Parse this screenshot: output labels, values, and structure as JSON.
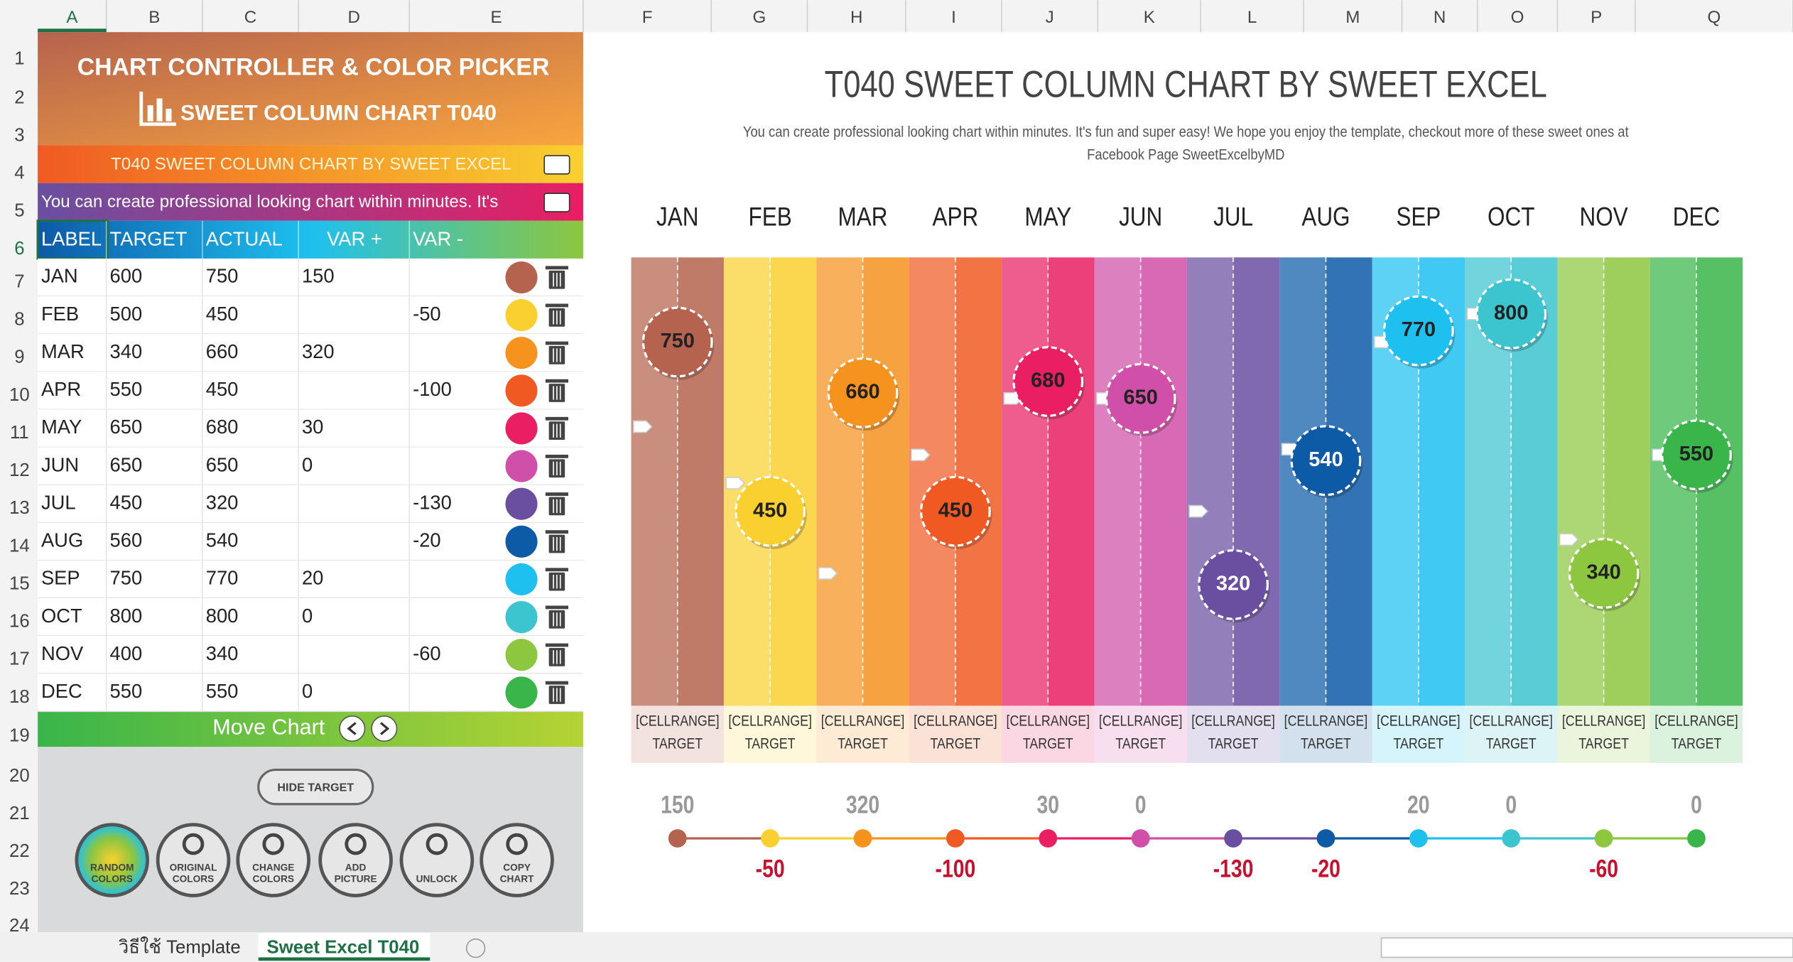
{
  "columns": [
    "A",
    "B",
    "C",
    "D",
    "E",
    "F",
    "G",
    "H",
    "I",
    "J",
    "K",
    "L",
    "M",
    "N",
    "O",
    "P",
    "Q"
  ],
  "row_numbers": [
    1,
    2,
    3,
    4,
    5,
    6,
    7,
    8,
    9,
    10,
    11,
    12,
    13,
    14,
    15,
    16,
    17,
    18,
    19,
    20,
    21,
    22,
    23,
    24
  ],
  "panel": {
    "title": "CHART CONTROLLER & COLOR PICKER",
    "subtitle": "SWEET COLUMN CHART T040",
    "title_cell": "T040 SWEET COLUMN CHART BY SWEET EXCEL",
    "subtitle_cell": "You can create professional looking chart within minutes. It's",
    "move_chart": "Move Chart",
    "hide_target": "HIDE TARGET",
    "buttons": [
      [
        "RANDOM",
        "COLORS"
      ],
      [
        "ORIGINAL",
        "COLORS"
      ],
      [
        "CHANGE",
        "COLORS"
      ],
      [
        "ADD",
        "PICTURE"
      ],
      [
        "UNLOCK"
      ],
      [
        "COPY",
        "CHART"
      ]
    ]
  },
  "table": {
    "headers": [
      "LABEL",
      "TARGET",
      "ACTUAL",
      "VAR +",
      "VAR -"
    ],
    "rows": [
      [
        "JAN",
        600,
        750,
        150,
        null
      ],
      [
        "FEB",
        500,
        450,
        null,
        -50
      ],
      [
        "MAR",
        340,
        660,
        320,
        null
      ],
      [
        "APR",
        550,
        450,
        null,
        -100
      ],
      [
        "MAY",
        650,
        680,
        30,
        null
      ],
      [
        "JUN",
        650,
        650,
        0,
        null
      ],
      [
        "JUL",
        450,
        320,
        null,
        -130
      ],
      [
        "AUG",
        560,
        540,
        null,
        -20
      ],
      [
        "SEP",
        750,
        770,
        20,
        null
      ],
      [
        "OCT",
        800,
        800,
        0,
        null
      ],
      [
        "NOV",
        400,
        340,
        null,
        -60
      ],
      [
        "DEC",
        550,
        550,
        0,
        null
      ]
    ],
    "colors": [
      "#b5634e",
      "#f9d030",
      "#f6921e",
      "#f05a22",
      "#e91e63",
      "#d04fa8",
      "#6a4fa0",
      "#0d5aa7",
      "#1ec0f0",
      "#3cc4cf",
      "#8dc63f",
      "#39b54a"
    ]
  },
  "chart": {
    "title": "T040 SWEET COLUMN CHART BY SWEET EXCEL",
    "subtitle": [
      "You can create professional looking chart within minutes. It's fun and super easy! We hope you enjoy the template, checkout more of these sweet ones at",
      "Facebook Page SweetExcelbyMD"
    ],
    "category_label": [
      "[CELLRANGE]",
      "TARGET"
    ],
    "ylim": [
      0,
      900
    ]
  },
  "tabs": [
    "วิธีใช้ Template",
    "Sweet Excel T040"
  ]
}
